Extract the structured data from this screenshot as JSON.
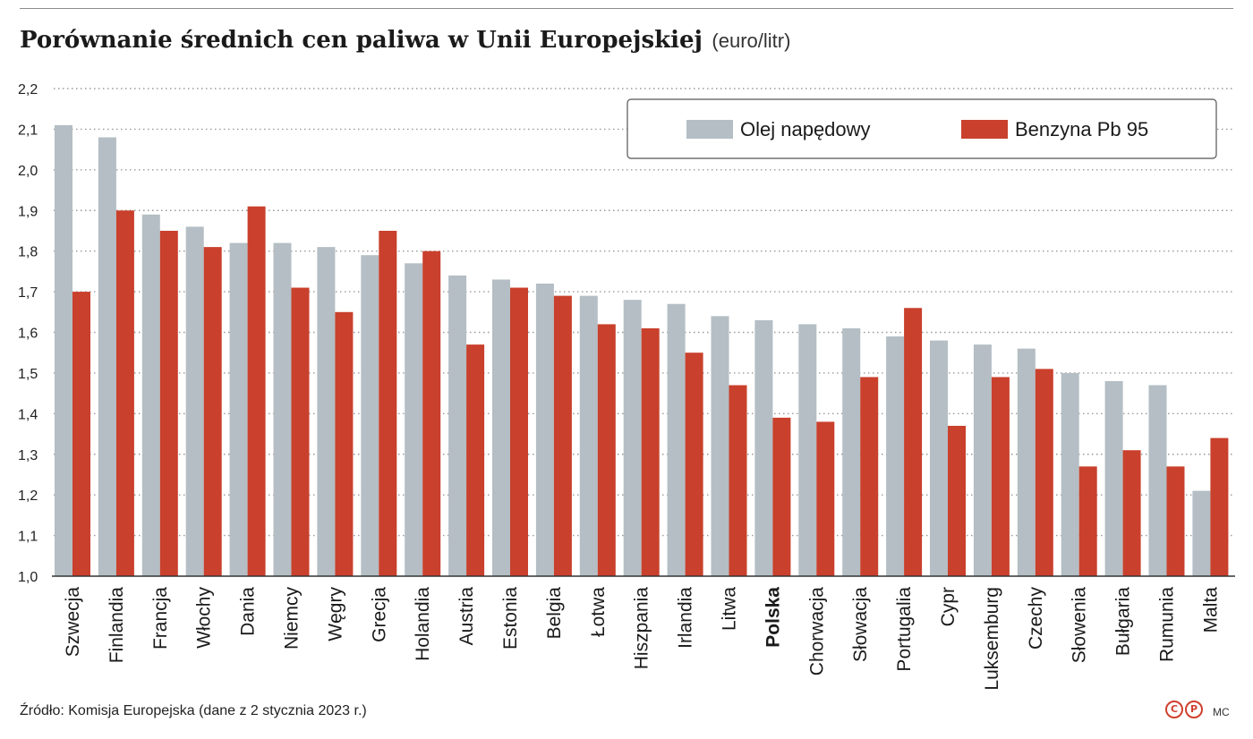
{
  "header": {
    "title": "Porównanie średnich cen paliwa w Unii Europejskiej",
    "unit": "(euro/litr)"
  },
  "footer": {
    "source": "Źródło: Komisja Europejska (dane z 2 stycznia 2023 r.)",
    "logo_c": "C",
    "logo_p": "P",
    "author": "MC"
  },
  "chart_data": {
    "type": "bar",
    "categories": [
      "Szwecja",
      "Finlandia",
      "Francja",
      "Włochy",
      "Dania",
      "Niemcy",
      "Węgry",
      "Grecja",
      "Holandia",
      "Austria",
      "Estonia",
      "Belgia",
      "Łotwa",
      "Hiszpania",
      "Irlandia",
      "Litwa",
      "Polska",
      "Chorwacja",
      "Słowacja",
      "Portugalia",
      "Cypr",
      "Luksemburg",
      "Czechy",
      "Słowenia",
      "Bułgaria",
      "Rumunia",
      "Malta"
    ],
    "highlight_category": "Polska",
    "series": [
      {
        "name": "Olej napędowy",
        "color": "#b4bec4",
        "values": [
          2.11,
          2.08,
          1.89,
          1.86,
          1.82,
          1.82,
          1.81,
          1.79,
          1.77,
          1.74,
          1.73,
          1.72,
          1.69,
          1.68,
          1.67,
          1.64,
          1.63,
          1.62,
          1.61,
          1.59,
          1.58,
          1.57,
          1.56,
          1.5,
          1.48,
          1.47,
          1.21
        ]
      },
      {
        "name": "Benzyna Pb 95",
        "color": "#c9402c",
        "values": [
          1.7,
          1.9,
          1.85,
          1.81,
          1.91,
          1.71,
          1.65,
          1.85,
          1.8,
          1.57,
          1.71,
          1.69,
          1.62,
          1.61,
          1.55,
          1.47,
          1.39,
          1.38,
          1.49,
          1.66,
          1.37,
          1.49,
          1.51,
          1.27,
          1.31,
          1.27,
          1.34
        ]
      }
    ],
    "yticks": [
      "1,0",
      "1,1",
      "1,2",
      "1,3",
      "1,4",
      "1,5",
      "1,6",
      "1,7",
      "1,8",
      "1,9",
      "2,0",
      "2,1",
      "2,2"
    ],
    "ylim": [
      1.0,
      2.2
    ],
    "grid": true,
    "legend_position": "top-right"
  }
}
